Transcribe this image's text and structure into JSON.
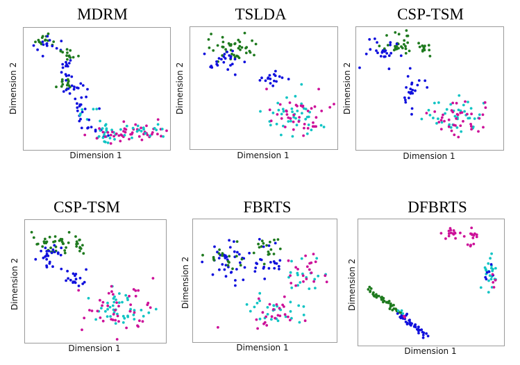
{
  "chart_data": [
    {
      "type": "scatter",
      "title": "MDRM",
      "xlabel": "Dimension 1",
      "ylabel": "Dimension 2",
      "xlim": [
        0,
        1
      ],
      "ylim": [
        0,
        1
      ],
      "colors": {
        "green": "#1f7a1f",
        "blue": "#1010dd",
        "cyan": "#11c4c4",
        "magenta": "#cc1199"
      },
      "clusters": [
        {
          "color": "green",
          "n": 14,
          "center": [
            0.12,
            0.93
          ],
          "spread": [
            0.06,
            0.03
          ]
        },
        {
          "color": "blue",
          "n": 14,
          "center": [
            0.15,
            0.88
          ],
          "spread": [
            0.07,
            0.03
          ]
        },
        {
          "color": "green",
          "n": 12,
          "center": [
            0.29,
            0.78
          ],
          "spread": [
            0.03,
            0.04
          ]
        },
        {
          "color": "blue",
          "n": 16,
          "center": [
            0.29,
            0.68
          ],
          "spread": [
            0.03,
            0.08
          ]
        },
        {
          "color": "green",
          "n": 12,
          "center": [
            0.28,
            0.52
          ],
          "spread": [
            0.03,
            0.03
          ]
        },
        {
          "color": "blue",
          "n": 12,
          "center": [
            0.33,
            0.5
          ],
          "spread": [
            0.04,
            0.04
          ]
        },
        {
          "color": "blue",
          "n": 14,
          "center": [
            0.4,
            0.33
          ],
          "spread": [
            0.04,
            0.07
          ]
        },
        {
          "color": "cyan",
          "n": 6,
          "center": [
            0.42,
            0.28
          ],
          "spread": [
            0.03,
            0.03
          ]
        },
        {
          "color": "blue",
          "n": 10,
          "center": [
            0.48,
            0.15
          ],
          "spread": [
            0.05,
            0.04
          ]
        },
        {
          "color": "cyan",
          "n": 24,
          "center": [
            0.58,
            0.11
          ],
          "spread": [
            0.09,
            0.04
          ]
        },
        {
          "color": "magenta",
          "n": 24,
          "center": [
            0.66,
            0.11
          ],
          "spread": [
            0.11,
            0.04
          ]
        },
        {
          "color": "magenta",
          "n": 22,
          "center": [
            0.85,
            0.13
          ],
          "spread": [
            0.08,
            0.04
          ]
        },
        {
          "color": "cyan",
          "n": 16,
          "center": [
            0.86,
            0.13
          ],
          "spread": [
            0.07,
            0.04
          ]
        }
      ]
    },
    {
      "type": "scatter",
      "title": "TSLDA",
      "xlabel": "Dimension 1",
      "ylabel": "Dimension 2",
      "xlim": [
        0,
        1
      ],
      "ylim": [
        0,
        1
      ],
      "colors": {
        "green": "#1f7a1f",
        "blue": "#1010dd",
        "cyan": "#11c4c4",
        "magenta": "#cc1199"
      },
      "clusters": [
        {
          "color": "green",
          "n": 34,
          "center": [
            0.26,
            0.83
          ],
          "spread": [
            0.08,
            0.06
          ]
        },
        {
          "color": "green",
          "n": 10,
          "center": [
            0.38,
            0.88
          ],
          "spread": [
            0.04,
            0.04
          ]
        },
        {
          "color": "blue",
          "n": 24,
          "center": [
            0.24,
            0.73
          ],
          "spread": [
            0.07,
            0.06
          ]
        },
        {
          "color": "blue",
          "n": 18,
          "center": [
            0.58,
            0.58
          ],
          "spread": [
            0.06,
            0.03
          ]
        },
        {
          "color": "cyan",
          "n": 40,
          "center": [
            0.72,
            0.25
          ],
          "spread": [
            0.11,
            0.09
          ]
        },
        {
          "color": "magenta",
          "n": 40,
          "center": [
            0.76,
            0.24
          ],
          "spread": [
            0.11,
            0.09
          ]
        }
      ]
    },
    {
      "type": "scatter",
      "title": "CSP-TSM",
      "xlabel": "Dimension 1",
      "ylabel": "Dimension 2",
      "xlim": [
        0,
        1
      ],
      "ylim": [
        0,
        1
      ],
      "colors": {
        "green": "#1f7a1f",
        "blue": "#1010dd",
        "cyan": "#11c4c4",
        "magenta": "#cc1199"
      },
      "clusters": [
        {
          "color": "green",
          "n": 30,
          "center": [
            0.29,
            0.86
          ],
          "spread": [
            0.07,
            0.05
          ]
        },
        {
          "color": "green",
          "n": 10,
          "center": [
            0.45,
            0.84
          ],
          "spread": [
            0.03,
            0.03
          ]
        },
        {
          "color": "blue",
          "n": 24,
          "center": [
            0.17,
            0.82
          ],
          "spread": [
            0.05,
            0.05
          ]
        },
        {
          "color": "blue",
          "n": 22,
          "center": [
            0.38,
            0.5
          ],
          "spread": [
            0.05,
            0.07
          ]
        },
        {
          "color": "cyan",
          "n": 38,
          "center": [
            0.68,
            0.28
          ],
          "spread": [
            0.1,
            0.09
          ]
        },
        {
          "color": "magenta",
          "n": 38,
          "center": [
            0.72,
            0.26
          ],
          "spread": [
            0.12,
            0.08
          ]
        }
      ]
    },
    {
      "type": "scatter",
      "title": "CSP-TSM",
      "xlabel": "Dimension 1",
      "ylabel": "Dimension 2",
      "xlim": [
        0,
        1
      ],
      "ylim": [
        0,
        1
      ],
      "colors": {
        "green": "#1f7a1f",
        "blue": "#1010dd",
        "cyan": "#11c4c4",
        "magenta": "#cc1199"
      },
      "clusters": [
        {
          "color": "green",
          "n": 34,
          "center": [
            0.2,
            0.82
          ],
          "spread": [
            0.08,
            0.05
          ]
        },
        {
          "color": "green",
          "n": 12,
          "center": [
            0.38,
            0.82
          ],
          "spread": [
            0.04,
            0.04
          ]
        },
        {
          "color": "blue",
          "n": 24,
          "center": [
            0.16,
            0.72
          ],
          "spread": [
            0.05,
            0.05
          ]
        },
        {
          "color": "blue",
          "n": 18,
          "center": [
            0.34,
            0.52
          ],
          "spread": [
            0.04,
            0.05
          ]
        },
        {
          "color": "cyan",
          "n": 40,
          "center": [
            0.66,
            0.26
          ],
          "spread": [
            0.11,
            0.09
          ]
        },
        {
          "color": "magenta",
          "n": 44,
          "center": [
            0.7,
            0.25
          ],
          "spread": [
            0.12,
            0.1
          ]
        }
      ]
    },
    {
      "type": "scatter",
      "title": "FBRTS",
      "xlabel": "Dimension 1",
      "ylabel": "Dimension 2",
      "xlim": [
        0,
        1
      ],
      "ylim": [
        0,
        1
      ],
      "colors": {
        "green": "#1f7a1f",
        "blue": "#1010dd",
        "cyan": "#11c4c4",
        "magenta": "#cc1199"
      },
      "clusters": [
        {
          "color": "blue",
          "n": 36,
          "center": [
            0.22,
            0.67
          ],
          "spread": [
            0.08,
            0.09
          ]
        },
        {
          "color": "green",
          "n": 16,
          "center": [
            0.21,
            0.67
          ],
          "spread": [
            0.07,
            0.06
          ]
        },
        {
          "color": "green",
          "n": 18,
          "center": [
            0.49,
            0.78
          ],
          "spread": [
            0.08,
            0.06
          ]
        },
        {
          "color": "blue",
          "n": 24,
          "center": [
            0.53,
            0.66
          ],
          "spread": [
            0.08,
            0.07
          ]
        },
        {
          "color": "cyan",
          "n": 18,
          "center": [
            0.8,
            0.55
          ],
          "spread": [
            0.06,
            0.08
          ]
        },
        {
          "color": "magenta",
          "n": 20,
          "center": [
            0.82,
            0.57
          ],
          "spread": [
            0.06,
            0.08
          ]
        },
        {
          "color": "cyan",
          "n": 28,
          "center": [
            0.6,
            0.24
          ],
          "spread": [
            0.1,
            0.07
          ]
        },
        {
          "color": "magenta",
          "n": 24,
          "center": [
            0.58,
            0.22
          ],
          "spread": [
            0.1,
            0.07
          ]
        }
      ]
    },
    {
      "type": "scatter",
      "title": "DFBRTS",
      "xlabel": "Dimension 1",
      "ylabel": "Dimension 2",
      "xlim": [
        0,
        1
      ],
      "ylim": [
        0,
        1
      ],
      "colors": {
        "green": "#1f7a1f",
        "blue": "#1010dd",
        "cyan": "#11c4c4",
        "magenta": "#cc1199"
      },
      "clusters": [
        {
          "color": "magenta",
          "n": 16,
          "center": [
            0.66,
            0.91
          ],
          "spread": [
            0.04,
            0.02
          ]
        },
        {
          "color": "magenta",
          "n": 10,
          "center": [
            0.81,
            0.9
          ],
          "spread": [
            0.02,
            0.03
          ]
        },
        {
          "color": "magenta",
          "n": 4,
          "center": [
            0.79,
            0.81
          ],
          "spread": [
            0.01,
            0.01
          ]
        },
        {
          "color": "cyan",
          "n": 22,
          "center": [
            0.93,
            0.57
          ],
          "spread": [
            0.025,
            0.07
          ]
        },
        {
          "color": "blue",
          "n": 6,
          "center": [
            0.91,
            0.6
          ],
          "spread": [
            0.02,
            0.05
          ]
        },
        {
          "color": "magenta",
          "n": 4,
          "center": [
            0.94,
            0.55
          ],
          "spread": [
            0.01,
            0.05
          ]
        }
      ],
      "trails": [
        {
          "color": "green",
          "n": 40,
          "from": [
            0.06,
            0.44
          ],
          "to": [
            0.27,
            0.24
          ],
          "jitter": 0.012
        },
        {
          "color": "blue",
          "n": 38,
          "from": [
            0.27,
            0.24
          ],
          "to": [
            0.46,
            0.05
          ],
          "jitter": 0.012
        },
        {
          "color": "cyan",
          "n": 3,
          "from": [
            0.27,
            0.26
          ],
          "to": [
            0.29,
            0.24
          ],
          "jitter": 0.005
        },
        {
          "color": "magenta",
          "n": 2,
          "from": [
            0.3,
            0.22
          ],
          "to": [
            0.31,
            0.21
          ],
          "jitter": 0.005
        }
      ]
    }
  ]
}
